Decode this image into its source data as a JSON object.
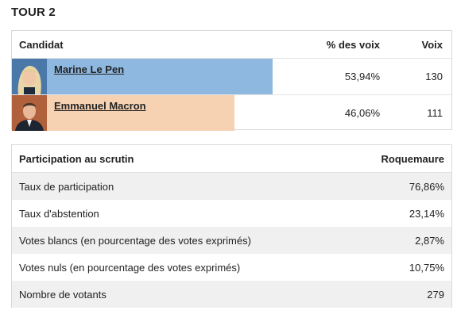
{
  "round": {
    "title": "TOUR 2"
  },
  "results": {
    "headers": {
      "candidate": "Candidat",
      "percent": "% des voix",
      "votes": "Voix"
    },
    "candidates": [
      {
        "name": "Marine Le Pen",
        "percent": "53,94%",
        "votes": "130",
        "share": 0.5394,
        "bar_color": "#8fb8e0",
        "photo_bg": "#4a78a8"
      },
      {
        "name": "Emmanuel Macron",
        "percent": "46,06%",
        "votes": "111",
        "share": 0.4606,
        "bar_color": "#f6d2b2",
        "photo_bg": "#b0603a"
      }
    ]
  },
  "participation": {
    "headers": {
      "label": "Participation au scrutin",
      "location": "Roquemaure"
    },
    "rows": [
      {
        "label": "Taux de participation",
        "value": "76,86%"
      },
      {
        "label": "Taux d'abstention",
        "value": "23,14%"
      },
      {
        "label": "Votes blancs (en pourcentage des votes exprimés)",
        "value": "2,87%"
      },
      {
        "label": "Votes nuls (en pourcentage des votes exprimés)",
        "value": "10,75%"
      },
      {
        "label": "Nombre de votants",
        "value": "279"
      }
    ]
  }
}
